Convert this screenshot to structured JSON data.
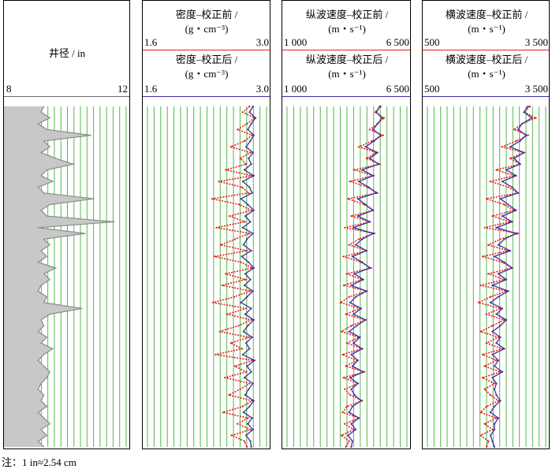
{
  "chart_data": [
    {
      "type": "line",
      "title": "井径 / in",
      "xlim": [
        8,
        12
      ],
      "x_tick_labels": [
        "8",
        "12"
      ],
      "series": [
        {
          "name": "",
          "color": "#8a8a8a",
          "fill": "#c8c8c8",
          "values": [
            9.2,
            9.1,
            9.4,
            9.0,
            9.3,
            10.8,
            9.2,
            9.4,
            9.1,
            9.6,
            10.2,
            9.3,
            9.1,
            9.5,
            9.0,
            9.2,
            10.9,
            9.4,
            9.1,
            9.3,
            11.6,
            9.0,
            10.6,
            9.2,
            9.4,
            9.1,
            9.3,
            9.0,
            9.6,
            9.2,
            9.4,
            9.1,
            9.0,
            9.3,
            9.2,
            10.5,
            9.4,
            9.1,
            9.2,
            9.0,
            9.3,
            9.1,
            9.5,
            9.2,
            9.0,
            9.2,
            9.4,
            9.3,
            9.1,
            9.0,
            9.2,
            9.1,
            9.3,
            9.0,
            9.2,
            9.4,
            9.1,
            9.3,
            9.0,
            9.2
          ]
        }
      ]
    },
    {
      "type": "line",
      "title_before": "密度–校正前 /",
      "unit_before": "(g・cm⁻³)",
      "title_after": "密度–校正后 /",
      "unit_after": "(g・cm⁻³)",
      "xlim": [
        1.6,
        3.0
      ],
      "x_tick_labels": [
        "1.6",
        "3.0"
      ],
      "series": [
        {
          "name": "",
          "color": "#e8211d",
          "values": [
            2.8,
            2.72,
            2.86,
            2.77,
            2.66,
            2.83,
            2.74,
            2.58,
            2.81,
            2.69,
            2.76,
            2.52,
            2.83,
            2.44,
            2.71,
            2.79,
            2.36,
            2.68,
            2.82,
            2.57,
            2.74,
            2.41,
            2.8,
            2.63,
            2.46,
            2.77,
            2.39,
            2.7,
            2.83,
            2.52,
            2.75,
            2.48,
            2.81,
            2.62,
            2.37,
            2.76,
            2.54,
            2.82,
            2.67,
            2.45,
            2.79,
            2.58,
            2.71,
            2.4,
            2.84,
            2.63,
            2.76,
            2.51,
            2.8,
            2.69,
            2.56,
            2.83,
            2.72,
            2.49,
            2.78,
            2.66,
            2.81,
            2.59,
            2.74,
            2.77
          ]
        },
        {
          "name": "",
          "color": "#3b2fa0",
          "values": [
            2.84,
            2.8,
            2.87,
            2.82,
            2.78,
            2.85,
            2.81,
            2.76,
            2.84,
            2.79,
            2.82,
            2.74,
            2.85,
            2.72,
            2.8,
            2.83,
            2.7,
            2.78,
            2.85,
            2.75,
            2.81,
            2.72,
            2.84,
            2.77,
            2.73,
            2.82,
            2.71,
            2.79,
            2.85,
            2.75,
            2.81,
            2.74,
            2.84,
            2.77,
            2.7,
            2.82,
            2.75,
            2.85,
            2.78,
            2.73,
            2.83,
            2.76,
            2.8,
            2.72,
            2.86,
            2.77,
            2.82,
            2.74,
            2.84,
            2.79,
            2.75,
            2.85,
            2.8,
            2.73,
            2.83,
            2.78,
            2.84,
            2.76,
            2.81,
            2.82
          ]
        }
      ]
    },
    {
      "type": "line",
      "title_before": "纵波速度–校正前 /",
      "unit_before": "(m・s⁻¹)",
      "title_after": "纵波速度–校正后 /",
      "unit_after": "(m・s⁻¹)",
      "xlim": [
        1000,
        6500
      ],
      "x_tick_labels": [
        "1 000",
        "6 500"
      ],
      "series": [
        {
          "name": "",
          "color": "#e8211d",
          "values": [
            5300,
            5050,
            5450,
            5150,
            4800,
            5400,
            4900,
            4300,
            5100,
            4650,
            5250,
            4100,
            4950,
            3900,
            4700,
            5150,
            3800,
            4550,
            4950,
            3950,
            4800,
            3650,
            5000,
            4300,
            3850,
            4650,
            3600,
            4400,
            4850,
            3750,
            4450,
            3600,
            4650,
            3850,
            3450,
            4350,
            3700,
            4600,
            3950,
            3500,
            4300,
            3750,
            4450,
            3550,
            4200,
            3700,
            4550,
            3600,
            4250,
            3650,
            3900,
            4450,
            3750,
            3550,
            4300,
            3650,
            4050,
            3500,
            3850,
            3700
          ]
        },
        {
          "name": "",
          "color": "#3b2fa0",
          "values": [
            5250,
            5100,
            5350,
            5150,
            4950,
            5300,
            5000,
            4600,
            5150,
            4800,
            5200,
            4450,
            4950,
            4300,
            4750,
            5100,
            4250,
            4600,
            4950,
            4250,
            4800,
            4050,
            4950,
            4450,
            4150,
            4650,
            4000,
            4450,
            4800,
            4100,
            4500,
            3950,
            4650,
            4150,
            3900,
            4400,
            4050,
            4600,
            4200,
            3850,
            4350,
            4050,
            4450,
            3950,
            4250,
            4000,
            4500,
            3900,
            4250,
            3950,
            4100,
            4400,
            4000,
            3850,
            4300,
            3950,
            4150,
            3800,
            4000,
            3950
          ]
        }
      ]
    },
    {
      "type": "line",
      "title_before": "横波速度–校正前 /",
      "unit_before": "(m・s⁻¹)",
      "title_after": "横波速度–校正后 /",
      "unit_after": "(m・s⁻¹)",
      "xlim": [
        500,
        3500
      ],
      "x_tick_labels": [
        "500",
        "3 500"
      ],
      "series": [
        {
          "name": "",
          "color": "#e8211d",
          "values": [
            3100,
            2950,
            3250,
            2900,
            2700,
            3050,
            2750,
            2400,
            2950,
            2600,
            2850,
            2250,
            2700,
            2100,
            2550,
            2800,
            2000,
            2450,
            2700,
            2150,
            2600,
            1950,
            2800,
            2350,
            2050,
            2550,
            1900,
            2400,
            2650,
            2050,
            2450,
            1850,
            2500,
            2100,
            1800,
            2350,
            2000,
            2450,
            2150,
            1850,
            2300,
            2000,
            2400,
            1900,
            2250,
            1950,
            2350,
            1900,
            2200,
            1950,
            2100,
            2300,
            2000,
            1850,
            2250,
            1950,
            2150,
            1850,
            2050,
            2000
          ]
        },
        {
          "name": "",
          "color": "#3b2fa0",
          "values": [
            3050,
            2950,
            3150,
            2900,
            2800,
            3000,
            2850,
            2600,
            2950,
            2700,
            2850,
            2500,
            2750,
            2400,
            2650,
            2800,
            2350,
            2550,
            2750,
            2400,
            2650,
            2250,
            2750,
            2450,
            2300,
            2600,
            2200,
            2450,
            2650,
            2300,
            2500,
            2150,
            2550,
            2300,
            2100,
            2400,
            2250,
            2500,
            2350,
            2150,
            2350,
            2250,
            2450,
            2150,
            2300,
            2200,
            2400,
            2150,
            2250,
            2200,
            2250,
            2350,
            2200,
            2100,
            2300,
            2200,
            2200,
            2100,
            2150,
            2200
          ]
        }
      ]
    }
  ],
  "note": "注：1 in≈2.54 cm",
  "colors": {
    "grid": "#52b848",
    "before_line": "#e8211d",
    "after_line": "#3b2fa0",
    "caliper_fill": "#c8c8c8"
  }
}
